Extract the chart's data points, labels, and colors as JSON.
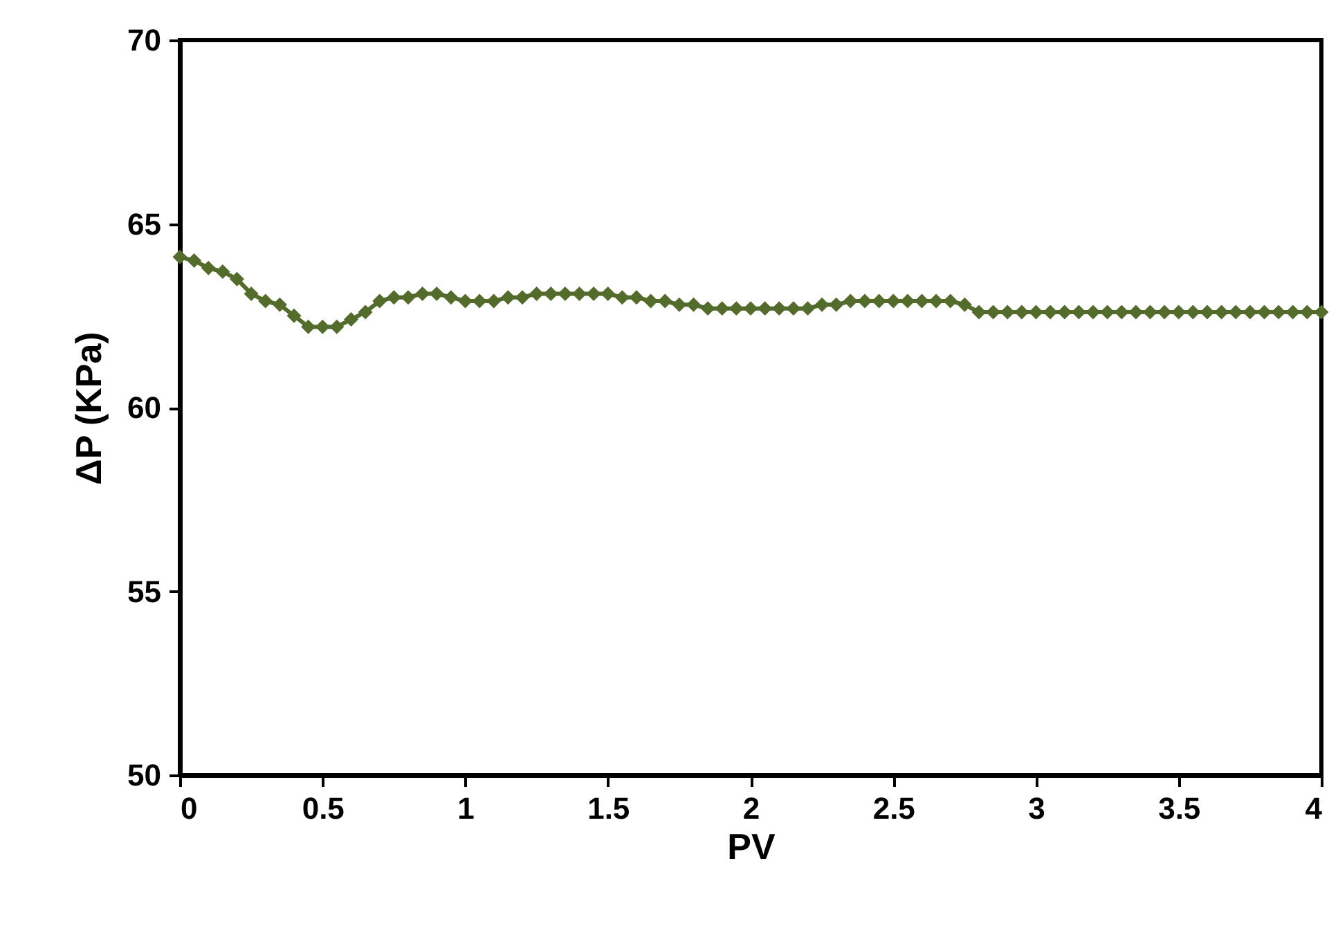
{
  "chart_data": {
    "type": "line",
    "xlabel": "PV",
    "ylabel": "ΔP (KPa)",
    "marker": "diamond",
    "grid": false,
    "legend": false,
    "xlim": [
      0,
      4
    ],
    "xticks": [
      0,
      0.5,
      1,
      1.5,
      2,
      2.5,
      3,
      3.5,
      4
    ],
    "ylim": [
      50,
      70
    ],
    "yticks": [
      50,
      55,
      60,
      65,
      70
    ],
    "series": [
      {
        "color": "#536b2b",
        "x": [
          0,
          0.05,
          0.1,
          0.15,
          0.2,
          0.25,
          0.3,
          0.35,
          0.4,
          0.45,
          0.5,
          0.55,
          0.6,
          0.65,
          0.7,
          0.75,
          0.8,
          0.85,
          0.9,
          0.95,
          1.0,
          1.05,
          1.1,
          1.15,
          1.2,
          1.25,
          1.3,
          1.35,
          1.4,
          1.45,
          1.5,
          1.55,
          1.6,
          1.65,
          1.7,
          1.75,
          1.8,
          1.85,
          1.9,
          1.95,
          2.0,
          2.05,
          2.1,
          2.15,
          2.2,
          2.25,
          2.3,
          2.35,
          2.4,
          2.45,
          2.5,
          2.55,
          2.6,
          2.65,
          2.7,
          2.75,
          2.8,
          2.85,
          2.9,
          2.95,
          3.0,
          3.05,
          3.1,
          3.15,
          3.2,
          3.25,
          3.3,
          3.35,
          3.4,
          3.45,
          3.5,
          3.55,
          3.6,
          3.65,
          3.7,
          3.75,
          3.8,
          3.85,
          3.9,
          3.95,
          4.0
        ],
        "values": [
          64.1,
          64.0,
          63.8,
          63.7,
          63.5,
          63.1,
          62.9,
          62.8,
          62.5,
          62.2,
          62.2,
          62.2,
          62.4,
          62.6,
          62.9,
          63.0,
          63.0,
          63.1,
          63.1,
          63.0,
          62.9,
          62.9,
          62.9,
          63.0,
          63.0,
          63.1,
          63.1,
          63.1,
          63.1,
          63.1,
          63.1,
          63.0,
          63.0,
          62.9,
          62.9,
          62.8,
          62.8,
          62.7,
          62.7,
          62.7,
          62.7,
          62.7,
          62.7,
          62.7,
          62.7,
          62.8,
          62.8,
          62.9,
          62.9,
          62.9,
          62.9,
          62.9,
          62.9,
          62.9,
          62.9,
          62.8,
          62.6,
          62.6,
          62.6,
          62.6,
          62.6,
          62.6,
          62.6,
          62.6,
          62.6,
          62.6,
          62.6,
          62.6,
          62.6,
          62.6,
          62.6,
          62.6,
          62.6,
          62.6,
          62.6,
          62.6,
          62.6,
          62.6,
          62.6,
          62.6,
          62.6
        ]
      }
    ]
  }
}
